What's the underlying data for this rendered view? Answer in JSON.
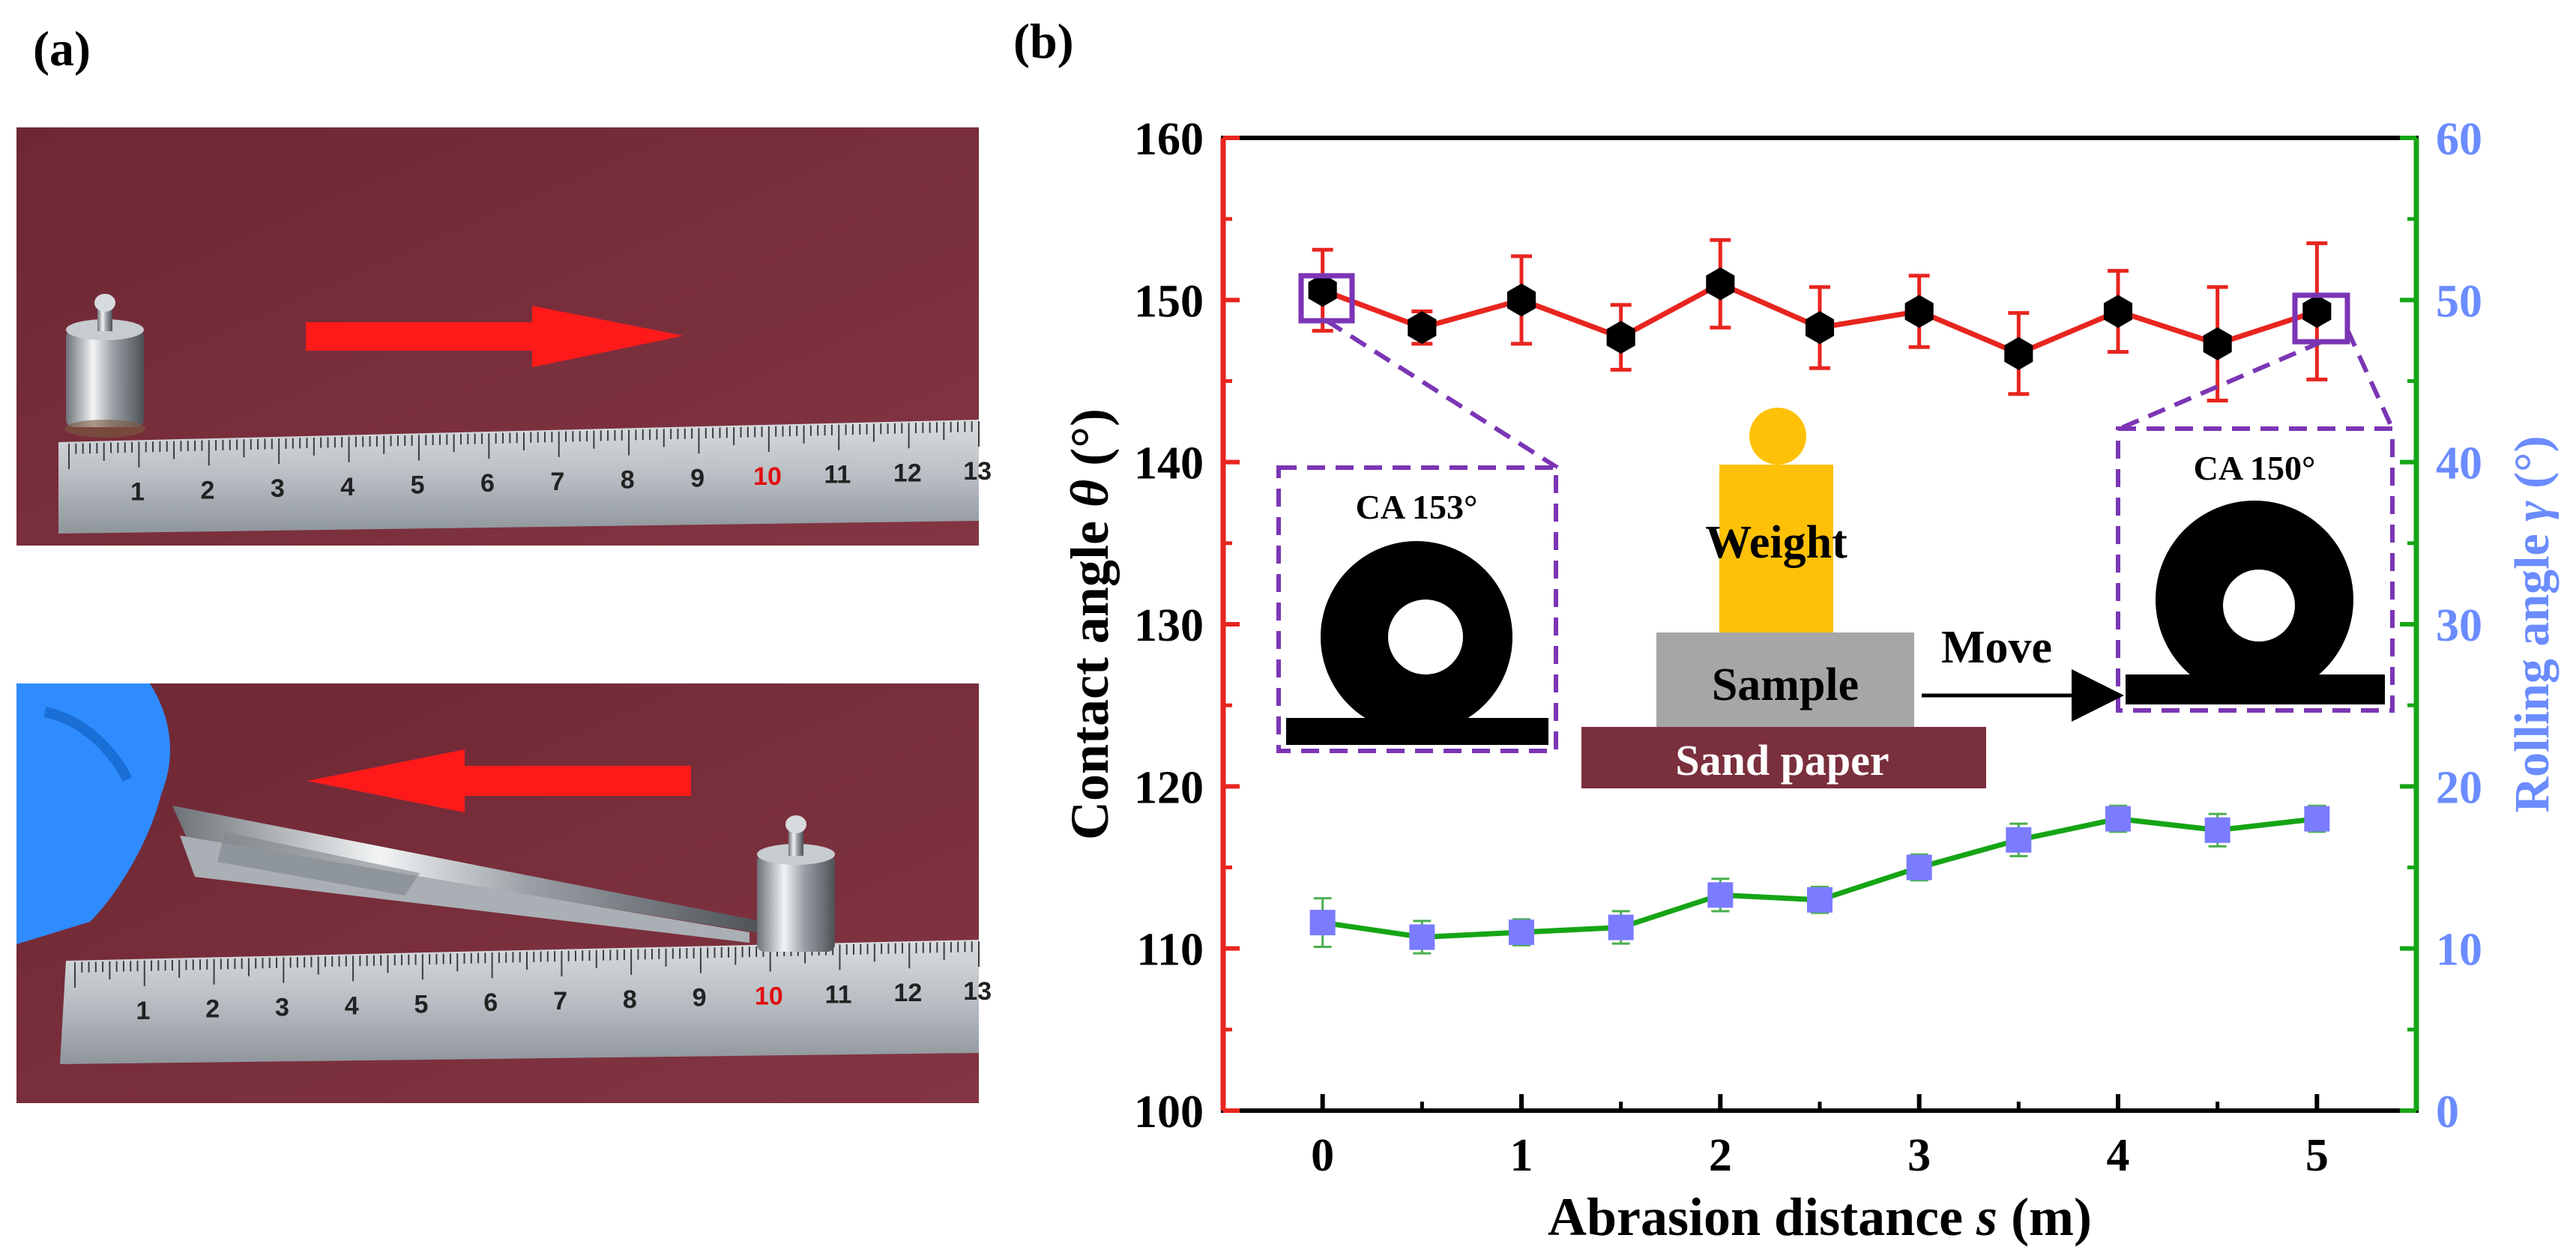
{
  "panel_a": {
    "label": "(a)",
    "photo_top": {
      "ruler_numbers": [
        "1",
        "2",
        "3",
        "4",
        "5",
        "6",
        "7",
        "8",
        "9",
        "10",
        "11",
        "12",
        "13"
      ],
      "arrow_direction": "right"
    },
    "photo_bottom": {
      "ruler_numbers": [
        "1",
        "2",
        "3",
        "4",
        "5",
        "6",
        "7",
        "8",
        "9",
        "10",
        "11",
        "12",
        "13"
      ],
      "arrow_direction": "left"
    },
    "colors": {
      "background": "#7a2e3a",
      "arrow": "#ff1a1a",
      "glove": "#2f8cff"
    }
  },
  "panel_b": {
    "label": "(b)",
    "inset_left_label": "CA 153°",
    "inset_right_label": "CA 150°",
    "schematic": {
      "weight": "Weight",
      "sample": "Sample",
      "sand_paper": "Sand paper",
      "move": "Move"
    }
  },
  "chart_data": {
    "type": "line",
    "xlabel_main": "Abrasion distance ",
    "xlabel_var": "s",
    "xlabel_unit": " (m)",
    "ylabel_left_main": "Contact angle ",
    "ylabel_left_var": "θ",
    "ylabel_left_unit": " (°)",
    "ylabel_right_main": "Rolling angle ",
    "ylabel_right_var": "γ",
    "ylabel_right_unit": " (°)",
    "xlim": [
      -0.5,
      5.5
    ],
    "ylim_left": [
      100,
      160
    ],
    "ylim_right": [
      0,
      60
    ],
    "x_ticks": [
      0,
      1,
      2,
      3,
      4,
      5
    ],
    "y_left_ticks": [
      100,
      110,
      120,
      130,
      140,
      150,
      160
    ],
    "y_right_ticks": [
      0,
      10,
      20,
      30,
      40,
      50,
      60
    ],
    "x_tick_labels": [
      "0",
      "1",
      "2",
      "3",
      "4",
      "5"
    ],
    "y_left_tick_labels": [
      "100",
      "110",
      "120",
      "130",
      "140",
      "150",
      "160"
    ],
    "y_right_tick_labels": [
      "0",
      "10",
      "20",
      "30",
      "40",
      "50",
      "60"
    ],
    "series": [
      {
        "name": "Contact angle",
        "axis": "left",
        "color": "#e8251f",
        "marker": "hexagon",
        "marker_color": "#000000",
        "x": [
          0,
          0.5,
          1,
          1.5,
          2,
          2.5,
          3,
          3.5,
          4,
          4.5,
          5
        ],
        "values": [
          150.6,
          148.3,
          150.0,
          147.7,
          151.0,
          148.3,
          149.3,
          146.7,
          149.3,
          147.3,
          149.3
        ],
        "errors": [
          2.5,
          1.0,
          2.7,
          2.0,
          2.7,
          2.5,
          2.2,
          2.5,
          2.5,
          3.5,
          4.2
        ]
      },
      {
        "name": "Rolling angle",
        "axis": "right",
        "color": "#16a516",
        "marker": "square",
        "marker_color": "#7b7bff",
        "x": [
          0,
          0.5,
          1,
          1.5,
          2,
          2.5,
          3,
          3.5,
          4,
          4.5,
          5
        ],
        "values": [
          11.6,
          10.7,
          11.0,
          11.3,
          13.3,
          13.0,
          15.0,
          16.7,
          18.0,
          17.3,
          18.0
        ],
        "errors": [
          1.5,
          1.0,
          0.8,
          1.0,
          1.0,
          0.8,
          0.8,
          1.0,
          0.8,
          1.0,
          0.8
        ]
      }
    ],
    "axis_colors": {
      "left": "#e8251f",
      "right": "#16a516",
      "right_label": "#6b8cff",
      "frame": "#000000",
      "inset_box": "#7b35b5"
    }
  }
}
